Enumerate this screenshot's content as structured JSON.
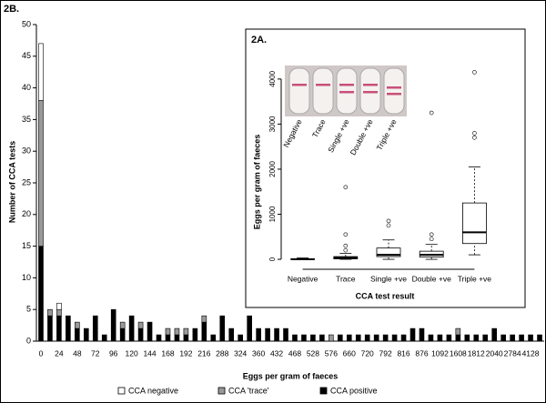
{
  "chart_data": [
    {
      "type": "bar",
      "stacked": true,
      "title": "2B.",
      "xlabel": "Eggs per gram of faeces",
      "ylabel": "Number of CCA tests",
      "categories": [
        "0",
        null,
        "24",
        null,
        "48",
        null,
        "72",
        null,
        "96",
        null,
        "120",
        null,
        "144",
        null,
        "168",
        null,
        "192",
        null,
        "216",
        null,
        "288",
        null,
        "324",
        null,
        "360",
        null,
        "432",
        null,
        "468",
        null,
        "528",
        null,
        "576",
        null,
        "660",
        null,
        "720",
        null,
        "792",
        null,
        "816",
        null,
        "876",
        null,
        "1092",
        null,
        "1608",
        null,
        "1812",
        null,
        "2040",
        null,
        "2784",
        null,
        "4128",
        null
      ],
      "series": [
        {
          "name": "CCA positive",
          "color": "#000000",
          "values": [
            15,
            4,
            4,
            4,
            2,
            2,
            4,
            1,
            5,
            2,
            4,
            2,
            3,
            1,
            1,
            1,
            1,
            2,
            3,
            1,
            4,
            2,
            1,
            4,
            2,
            2,
            2,
            2,
            1,
            1,
            1,
            1,
            0,
            1,
            1,
            1,
            1,
            1,
            1,
            1,
            1,
            2,
            2,
            1,
            1,
            1,
            1,
            1,
            1,
            1,
            2,
            1,
            1,
            1,
            1,
            1
          ]
        },
        {
          "name": "CCA 'trace'",
          "color": "#999999",
          "values": [
            23,
            1,
            1,
            0,
            1,
            0,
            0,
            0,
            0,
            1,
            0,
            1,
            0,
            0,
            1,
            1,
            1,
            0,
            1,
            0,
            0,
            0,
            0,
            0,
            0,
            0,
            0,
            0,
            0,
            0,
            0,
            0,
            1,
            0,
            0,
            0,
            0,
            0,
            0,
            0,
            0,
            0,
            0,
            0,
            0,
            0,
            1,
            0,
            0,
            0,
            0,
            0,
            0,
            0,
            0,
            0
          ]
        },
        {
          "name": "CCA negative",
          "color": "#ffffff",
          "values": [
            9,
            0,
            1,
            0,
            0,
            0,
            0,
            0,
            0,
            0,
            0,
            0,
            0,
            0,
            0,
            0,
            0,
            0,
            0,
            0,
            0,
            0,
            0,
            0,
            0,
            0,
            0,
            0,
            0,
            0,
            0,
            0,
            0,
            0,
            0,
            0,
            0,
            0,
            0,
            0,
            0,
            0,
            0,
            0,
            0,
            0,
            0,
            0,
            0,
            0,
            0,
            0,
            0,
            0,
            0,
            0
          ]
        }
      ],
      "ylim": [
        0,
        50
      ],
      "yticks": [
        0,
        5,
        10,
        15,
        20,
        25,
        30,
        35,
        40,
        45,
        50
      ],
      "legend": "bottom"
    },
    {
      "type": "box",
      "title": "2A.",
      "xlabel": "CCA test result",
      "ylabel": "Eggs per gram of faeces",
      "categories": [
        "Negative",
        "Trace",
        "Single +ve",
        "Double +ve",
        "Triple +ve"
      ],
      "photo_labels": [
        "Negative",
        "Trace",
        "Single +ve",
        "Double +ve",
        "Triple +ve"
      ],
      "boxes": [
        {
          "low": 0,
          "q1": 0,
          "median": 0,
          "q3": 10,
          "high": 30,
          "outliers": []
        },
        {
          "low": 0,
          "q1": 10,
          "median": 30,
          "q3": 60,
          "high": 130,
          "outliers": [
            200,
            300,
            550,
            1600
          ]
        },
        {
          "low": 0,
          "q1": 60,
          "median": 100,
          "q3": 250,
          "high": 430,
          "outliers": [
            750,
            850
          ]
        },
        {
          "low": 0,
          "q1": 50,
          "median": 100,
          "q3": 180,
          "high": 330,
          "outliers": [
            450,
            550,
            3250
          ]
        },
        {
          "low": 100,
          "q1": 350,
          "median": 600,
          "q3": 1250,
          "high": 2050,
          "outliers": [
            2700,
            2800,
            4150
          ]
        }
      ],
      "ylim": [
        -100,
        4300
      ],
      "yticks": [
        0,
        1000,
        2000,
        3000,
        4000
      ]
    }
  ]
}
